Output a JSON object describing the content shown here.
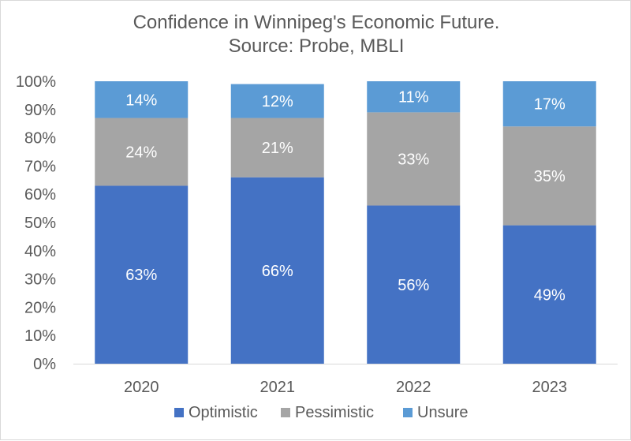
{
  "chart_data": {
    "type": "bar",
    "stacked": true,
    "title": [
      "Confidence in Winnipeg's Economic Future.",
      "Source: Probe, MBLI"
    ],
    "categories": [
      "2020",
      "2021",
      "2022",
      "2023"
    ],
    "series": [
      {
        "name": "Optimistic",
        "values": [
          63,
          66,
          56,
          49
        ],
        "labels": [
          "63%",
          "66%",
          "56%",
          "49%"
        ],
        "color": "#4472c4"
      },
      {
        "name": "Pessimistic",
        "values": [
          24,
          21,
          33,
          35
        ],
        "labels": [
          "24%",
          "21%",
          "33%",
          "35%"
        ],
        "color": "#a5a5a5"
      },
      {
        "name": "Unsure",
        "values": [
          14,
          12,
          11,
          17
        ],
        "labels": [
          "14%",
          "12%",
          "11%",
          "17%"
        ],
        "color": "#5b9bd5"
      }
    ],
    "ylim": [
      0,
      100
    ],
    "yticks": [
      "0%",
      "10%",
      "20%",
      "30%",
      "40%",
      "50%",
      "60%",
      "70%",
      "80%",
      "90%",
      "100%"
    ],
    "grid": false,
    "legend_position": "bottom"
  }
}
